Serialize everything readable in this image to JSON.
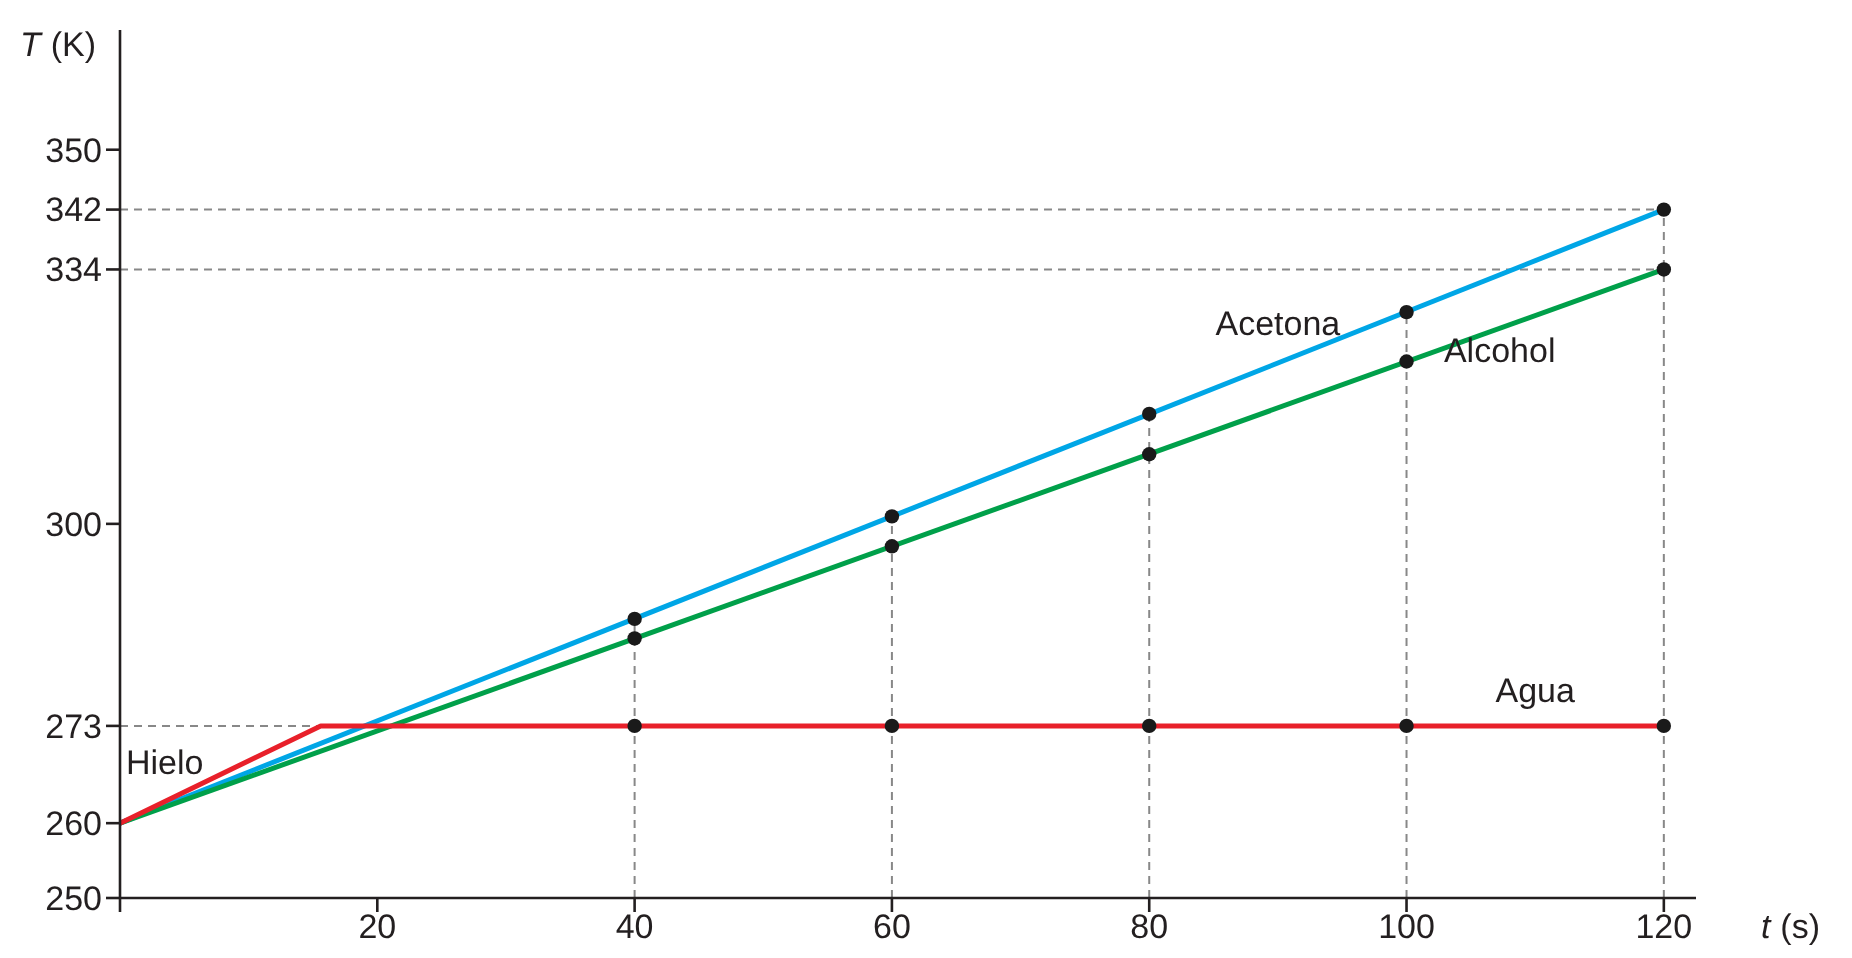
{
  "chart_data": {
    "type": "line",
    "xlabel": "t (s)",
    "ylabel": "T (K)",
    "xlim": [
      0,
      122.5
    ],
    "ylim": [
      250,
      366
    ],
    "xticks": [
      20,
      40,
      60,
      80,
      100,
      120
    ],
    "yticks": [
      250,
      260,
      273,
      300,
      334,
      342,
      350
    ],
    "line_style": "solid",
    "grid": false,
    "series": [
      {
        "name": "Acetona",
        "color": "#00a6e6",
        "x": [
          0,
          120
        ],
        "values": [
          260,
          342
        ]
      },
      {
        "name": "Alcohol",
        "color": "#00a04a",
        "x": [
          0,
          120
        ],
        "values": [
          260,
          334
        ]
      },
      {
        "name": "Agua",
        "color": "#e8202a",
        "x": [
          0,
          15.6,
          120
        ],
        "values": [
          260,
          273,
          273
        ]
      },
      {
        "type": "scatter",
        "color": "#1a1a1a",
        "marker": "circle",
        "x": [
          40,
          60,
          80,
          100,
          120
        ],
        "values": [
          287.3,
          301,
          314.7,
          328.3,
          342
        ]
      },
      {
        "type": "scatter",
        "color": "#1a1a1a",
        "marker": "circle",
        "x": [
          40,
          60,
          80,
          100,
          120
        ],
        "values": [
          284.7,
          297,
          309.3,
          321.7,
          334
        ]
      },
      {
        "type": "scatter",
        "color": "#1a1a1a",
        "marker": "circle",
        "x": [
          40,
          60,
          80,
          100,
          120
        ],
        "values": [
          273,
          273,
          273,
          273,
          273
        ]
      }
    ],
    "ref_lines": [
      {
        "axis": "y",
        "value": 342,
        "color": "#888888",
        "line_style": "dashed"
      },
      {
        "axis": "y",
        "value": 334,
        "color": "#888888",
        "line_style": "dashed"
      },
      {
        "axis": "y",
        "value": 273,
        "color": "#888888",
        "line_style": "dashed"
      },
      {
        "axis": "x",
        "value": 40,
        "color": "#888888",
        "line_style": "dashed"
      },
      {
        "axis": "x",
        "value": 60,
        "color": "#888888",
        "line_style": "dashed"
      },
      {
        "axis": "x",
        "value": 80,
        "color": "#888888",
        "line_style": "dashed"
      },
      {
        "axis": "x",
        "value": 100,
        "color": "#888888",
        "line_style": "dashed"
      },
      {
        "axis": "x",
        "value": 120,
        "color": "#888888",
        "line_style": "dashed"
      }
    ],
    "annotations": [
      "Hielo"
    ]
  }
}
